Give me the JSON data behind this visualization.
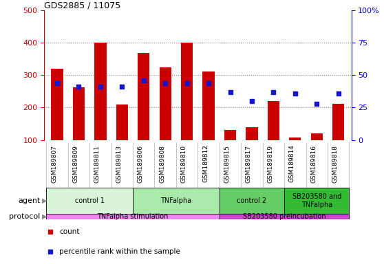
{
  "title": "GDS2885 / 11075",
  "samples": [
    "GSM189807",
    "GSM189809",
    "GSM189811",
    "GSM189813",
    "GSM189806",
    "GSM189808",
    "GSM189810",
    "GSM189812",
    "GSM189815",
    "GSM189817",
    "GSM189819",
    "GSM189814",
    "GSM189816",
    "GSM189818"
  ],
  "counts": [
    320,
    262,
    400,
    210,
    370,
    325,
    400,
    312,
    130,
    140,
    220,
    108,
    120,
    212
  ],
  "percentile_ranks": [
    44,
    41,
    41,
    41,
    46,
    44,
    44,
    44,
    37,
    30,
    37,
    36,
    28,
    36
  ],
  "ylim_left": [
    100,
    500
  ],
  "ylim_right": [
    0,
    100
  ],
  "yticks_left": [
    100,
    200,
    300,
    400,
    500
  ],
  "yticks_right": [
    0,
    25,
    50,
    75,
    100
  ],
  "bar_color": "#cc0000",
  "dot_color": "#1515cc",
  "agent_groups": [
    {
      "label": "control 1",
      "start": 0,
      "end": 4,
      "color": "#d9f5d9"
    },
    {
      "label": "TNFalpha",
      "start": 4,
      "end": 8,
      "color": "#aaeaaa"
    },
    {
      "label": "control 2",
      "start": 8,
      "end": 11,
      "color": "#66cc66"
    },
    {
      "label": "SB203580 and\nTNFalpha",
      "start": 11,
      "end": 14,
      "color": "#33bb33"
    }
  ],
  "protocol_groups": [
    {
      "label": "TNFalpha stimulation",
      "start": 0,
      "end": 8,
      "color": "#ee88ee"
    },
    {
      "label": "SB203580 preincubation",
      "start": 8,
      "end": 14,
      "color": "#cc44cc"
    }
  ],
  "bg_color": "#ffffff",
  "grid_color": "#888888",
  "left_axis_color": "#cc0000",
  "right_axis_color": "#0000cc",
  "legend_items": [
    {
      "label": "count",
      "color": "#cc0000"
    },
    {
      "label": "percentile rank within the sample",
      "color": "#1515cc"
    }
  ],
  "xticklabel_bg": "#cccccc",
  "agent_label": "agent",
  "protocol_label": "protocol"
}
